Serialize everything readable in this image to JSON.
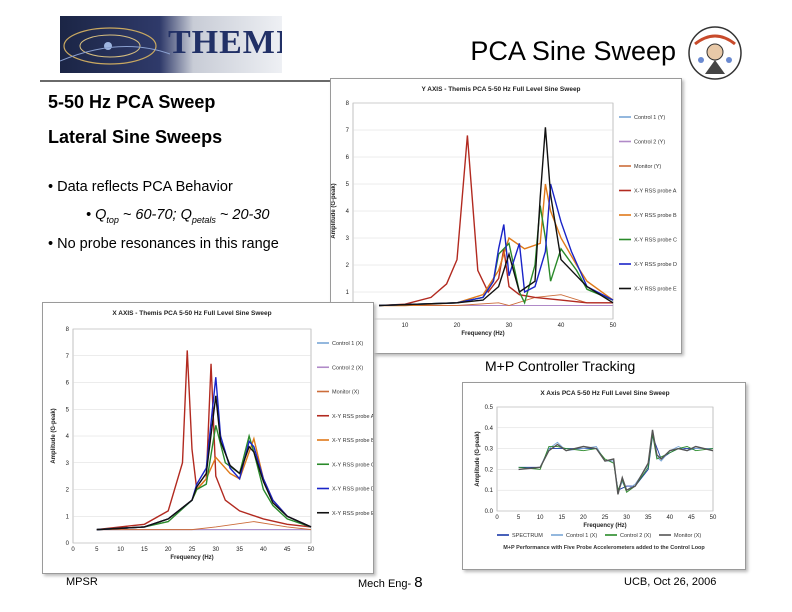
{
  "slide": {
    "title": "PCA Sine Sweep",
    "logo_text": "THEMIS",
    "heading1": "5-50 Hz PCA Sweep",
    "heading2": "Lateral Sine Sweeps",
    "bullet1": "Data reflects PCA Behavior",
    "bullet2_q1": "Q",
    "bullet2_sub1": "top",
    "bullet2_mid": " ~ 60-70; Q",
    "bullet2_sub2": "petals",
    "bullet2_end": " ~ 20-30",
    "bullet3": "No probe resonances in this range",
    "tracking_label": "M+P Controller Tracking"
  },
  "footer": {
    "left": "MPSR",
    "center_label": "Mech Eng- ",
    "page": "8",
    "right": "UCB, Oct 26, 2006"
  },
  "chart_data": [
    {
      "type": "line",
      "title": "Y AXIS - Themis PCA 5-50 Hz Full Level Sine Sweep",
      "xlabel": "Frequency (Hz)",
      "ylabel": "Amplitude (G-peak)",
      "xlim": [
        0,
        50
      ],
      "ylim": [
        0,
        8
      ],
      "xticks": [
        "0",
        "10",
        "20",
        "30",
        "40",
        "50"
      ],
      "yticks": [
        "0",
        "1",
        "2",
        "3",
        "4",
        "5",
        "6",
        "7",
        "8"
      ],
      "legend_position": "right",
      "series": [
        {
          "name": "Control 1 (Y)",
          "color": "#7aa6d6",
          "x": [
            5,
            20,
            30,
            40,
            50
          ],
          "y": [
            0.5,
            0.5,
            0.5,
            0.5,
            0.5
          ]
        },
        {
          "name": "Control 2 (Y)",
          "color": "#b08ac8",
          "x": [
            5,
            20,
            30,
            40,
            50
          ],
          "y": [
            0.5,
            0.5,
            0.5,
            0.5,
            0.5
          ]
        },
        {
          "name": "Monitor (Y)",
          "color": "#cc6d3a",
          "x": [
            5,
            10,
            20,
            28,
            30,
            35,
            40,
            45,
            50
          ],
          "y": [
            0.5,
            0.5,
            0.5,
            0.6,
            0.5,
            0.8,
            0.9,
            0.6,
            0.6
          ]
        },
        {
          "name": "X-Y RSS probe A",
          "color": "#b22a20",
          "x": [
            5,
            10,
            15,
            18,
            20,
            21,
            22,
            24,
            26,
            28,
            29,
            30,
            32,
            35,
            40,
            45,
            50
          ],
          "y": [
            0.5,
            0.55,
            0.8,
            1.3,
            2.2,
            4.5,
            6.8,
            1.8,
            1.0,
            1.5,
            2.6,
            1.2,
            0.9,
            0.8,
            0.7,
            0.6,
            0.6
          ]
        },
        {
          "name": "X-Y RSS probe B",
          "color": "#e07a1a",
          "x": [
            5,
            10,
            20,
            25,
            28,
            30,
            33,
            36,
            37,
            38,
            40,
            43,
            45,
            50
          ],
          "y": [
            0.5,
            0.5,
            0.6,
            0.9,
            1.8,
            3.0,
            2.6,
            2.8,
            5.0,
            4.0,
            3.0,
            2.0,
            1.4,
            0.7
          ]
        },
        {
          "name": "X-Y RSS probe C",
          "color": "#2a8a2a",
          "x": [
            5,
            20,
            25,
            27,
            28,
            30,
            32,
            33,
            35,
            36,
            37,
            38,
            40,
            43,
            45,
            50
          ],
          "y": [
            0.5,
            0.6,
            0.8,
            1.4,
            2.4,
            2.8,
            1.0,
            0.6,
            2.0,
            4.2,
            3.0,
            1.4,
            2.6,
            1.8,
            1.1,
            0.7
          ]
        },
        {
          "name": "X-Y RSS probe D",
          "color": "#1a24c8",
          "x": [
            5,
            20,
            25,
            27,
            28,
            29,
            30,
            32,
            33,
            35,
            37,
            38,
            40,
            42,
            45,
            50
          ],
          "y": [
            0.5,
            0.6,
            0.8,
            1.4,
            2.6,
            3.5,
            1.6,
            2.8,
            1.0,
            1.2,
            2.5,
            5.0,
            3.6,
            2.5,
            1.2,
            0.7
          ]
        },
        {
          "name": "X-Y RSS probe E",
          "color": "#111111",
          "x": [
            5,
            20,
            25,
            28,
            30,
            32,
            35,
            36,
            37,
            38,
            40,
            43,
            45,
            50
          ],
          "y": [
            0.5,
            0.6,
            0.7,
            1.2,
            2.4,
            1.0,
            1.4,
            4.5,
            7.1,
            4.6,
            2.2,
            1.6,
            1.2,
            0.6
          ]
        }
      ]
    },
    {
      "type": "line",
      "title": "X AXIS - Themis PCA 5-50 Hz Full Level Sine Sweep",
      "xlabel": "Frequency (Hz)",
      "ylabel": "Amplitude (G-peak)",
      "xlim": [
        0,
        50
      ],
      "ylim": [
        0,
        8
      ],
      "xticks": [
        "0",
        "5",
        "10",
        "15",
        "20",
        "25",
        "30",
        "35",
        "40",
        "45",
        "50"
      ],
      "yticks": [
        "0",
        "1",
        "2",
        "3",
        "4",
        "5",
        "6",
        "7",
        "8"
      ],
      "legend_position": "right",
      "series": [
        {
          "name": "Control 1 (X)",
          "color": "#7aa6d6",
          "x": [
            5,
            20,
            30,
            40,
            50
          ],
          "y": [
            0.5,
            0.5,
            0.5,
            0.5,
            0.5
          ]
        },
        {
          "name": "Control 2 (X)",
          "color": "#b08ac8",
          "x": [
            5,
            20,
            30,
            40,
            50
          ],
          "y": [
            0.5,
            0.5,
            0.5,
            0.5,
            0.5
          ]
        },
        {
          "name": "Monitor (X)",
          "color": "#cc6d3a",
          "x": [
            5,
            15,
            25,
            30,
            38,
            45,
            50
          ],
          "y": [
            0.5,
            0.5,
            0.5,
            0.6,
            0.8,
            0.6,
            0.5
          ]
        },
        {
          "name": "X-Y RSS probe A",
          "color": "#b22a20",
          "x": [
            5,
            15,
            20,
            23,
            24,
            25,
            26,
            28,
            29,
            30,
            32,
            35,
            40,
            45,
            50
          ],
          "y": [
            0.5,
            0.7,
            1.2,
            3.0,
            7.2,
            3.5,
            2.0,
            2.4,
            6.7,
            2.5,
            1.6,
            1.2,
            0.9,
            0.7,
            0.6
          ]
        },
        {
          "name": "X-Y RSS probe B",
          "color": "#e07a1a",
          "x": [
            5,
            15,
            20,
            25,
            26,
            28,
            30,
            33,
            35,
            38,
            40,
            42,
            45,
            50
          ],
          "y": [
            0.5,
            0.6,
            0.9,
            1.6,
            2.0,
            2.4,
            3.2,
            2.6,
            2.4,
            3.9,
            2.4,
            1.6,
            1.0,
            0.6
          ]
        },
        {
          "name": "X-Y RSS probe C",
          "color": "#2a8a2a",
          "x": [
            5,
            15,
            20,
            25,
            26,
            28,
            30,
            32,
            35,
            37,
            38,
            40,
            42,
            45,
            50
          ],
          "y": [
            0.5,
            0.6,
            0.8,
            1.6,
            2.0,
            2.2,
            4.4,
            3.0,
            2.6,
            4.0,
            3.4,
            2.0,
            1.4,
            0.9,
            0.6
          ]
        },
        {
          "name": "X-Y RSS probe D",
          "color": "#1a24c8",
          "x": [
            5,
            15,
            20,
            25,
            26,
            28,
            30,
            31,
            33,
            35,
            37,
            38,
            40,
            42,
            45,
            50
          ],
          "y": [
            0.5,
            0.6,
            0.9,
            1.6,
            2.2,
            2.8,
            6.2,
            4.0,
            2.8,
            2.4,
            3.8,
            3.6,
            2.4,
            1.6,
            1.0,
            0.6
          ]
        },
        {
          "name": "X-Y RSS probe E",
          "color": "#111111",
          "x": [
            5,
            15,
            20,
            25,
            26,
            28,
            30,
            31,
            33,
            35,
            37,
            38,
            40,
            42,
            45,
            50
          ],
          "y": [
            0.5,
            0.6,
            0.9,
            1.6,
            2.1,
            2.6,
            5.5,
            3.8,
            2.9,
            2.6,
            3.6,
            3.4,
            2.3,
            1.5,
            1.0,
            0.6
          ]
        }
      ]
    },
    {
      "type": "line",
      "title": "X Axis PCA 5-50 Hz Full Level Sine Sweep",
      "subtitle": "M+P Performance with Five Probe Accelerometers added to the Control Loop",
      "xlabel": "Frequency (Hz)",
      "ylabel": "Amplitude (G-peak)",
      "xlim": [
        0,
        50
      ],
      "ylim": [
        0,
        0.5
      ],
      "xticks": [
        "0",
        "5",
        "10",
        "15",
        "20",
        "25",
        "30",
        "35",
        "40",
        "45",
        "50"
      ],
      "yticks": [
        "0.0",
        "0.1",
        "0.2",
        "0.3",
        "0.4",
        "0.5"
      ],
      "legend_position": "bottom",
      "series": [
        {
          "name": "SPECTRUM",
          "color": "#1a3aa8",
          "x": [
            5,
            10,
            12,
            14,
            16,
            20,
            23,
            25,
            27,
            28,
            30,
            32,
            35,
            36,
            38,
            40,
            42,
            44,
            46,
            50
          ],
          "y": [
            0.21,
            0.21,
            0.3,
            0.3,
            0.3,
            0.3,
            0.3,
            0.24,
            0.24,
            0.1,
            0.12,
            0.12,
            0.2,
            0.36,
            0.25,
            0.28,
            0.3,
            0.3,
            0.3,
            0.3
          ]
        },
        {
          "name": "Control 1 (X)",
          "color": "#7aa6d6",
          "x": [
            5,
            10,
            12,
            14,
            16,
            20,
            23,
            25,
            27,
            28,
            29,
            30,
            32,
            35,
            36,
            37,
            38,
            40,
            42,
            44,
            46,
            50
          ],
          "y": [
            0.2,
            0.21,
            0.3,
            0.33,
            0.29,
            0.3,
            0.31,
            0.24,
            0.24,
            0.09,
            0.14,
            0.1,
            0.13,
            0.22,
            0.38,
            0.26,
            0.24,
            0.29,
            0.31,
            0.29,
            0.3,
            0.3
          ]
        },
        {
          "name": "Control 2 (X)",
          "color": "#2a8a2a",
          "x": [
            5,
            10,
            12,
            14,
            16,
            20,
            23,
            25,
            27,
            28,
            29,
            30,
            32,
            35,
            36,
            37,
            38,
            40,
            42,
            44,
            46,
            50
          ],
          "y": [
            0.21,
            0.2,
            0.31,
            0.31,
            0.3,
            0.29,
            0.3,
            0.25,
            0.23,
            0.1,
            0.15,
            0.09,
            0.12,
            0.21,
            0.37,
            0.25,
            0.26,
            0.28,
            0.3,
            0.31,
            0.29,
            0.3
          ]
        },
        {
          "name": "Monitor (X)",
          "color": "#555555",
          "x": [
            5,
            10,
            12,
            14,
            16,
            20,
            23,
            25,
            27,
            28,
            29,
            30,
            32,
            35,
            36,
            37,
            38,
            40,
            42,
            44,
            46,
            50
          ],
          "y": [
            0.2,
            0.21,
            0.29,
            0.32,
            0.29,
            0.31,
            0.3,
            0.24,
            0.25,
            0.08,
            0.16,
            0.1,
            0.12,
            0.23,
            0.39,
            0.27,
            0.25,
            0.29,
            0.3,
            0.29,
            0.31,
            0.29
          ]
        }
      ]
    }
  ]
}
